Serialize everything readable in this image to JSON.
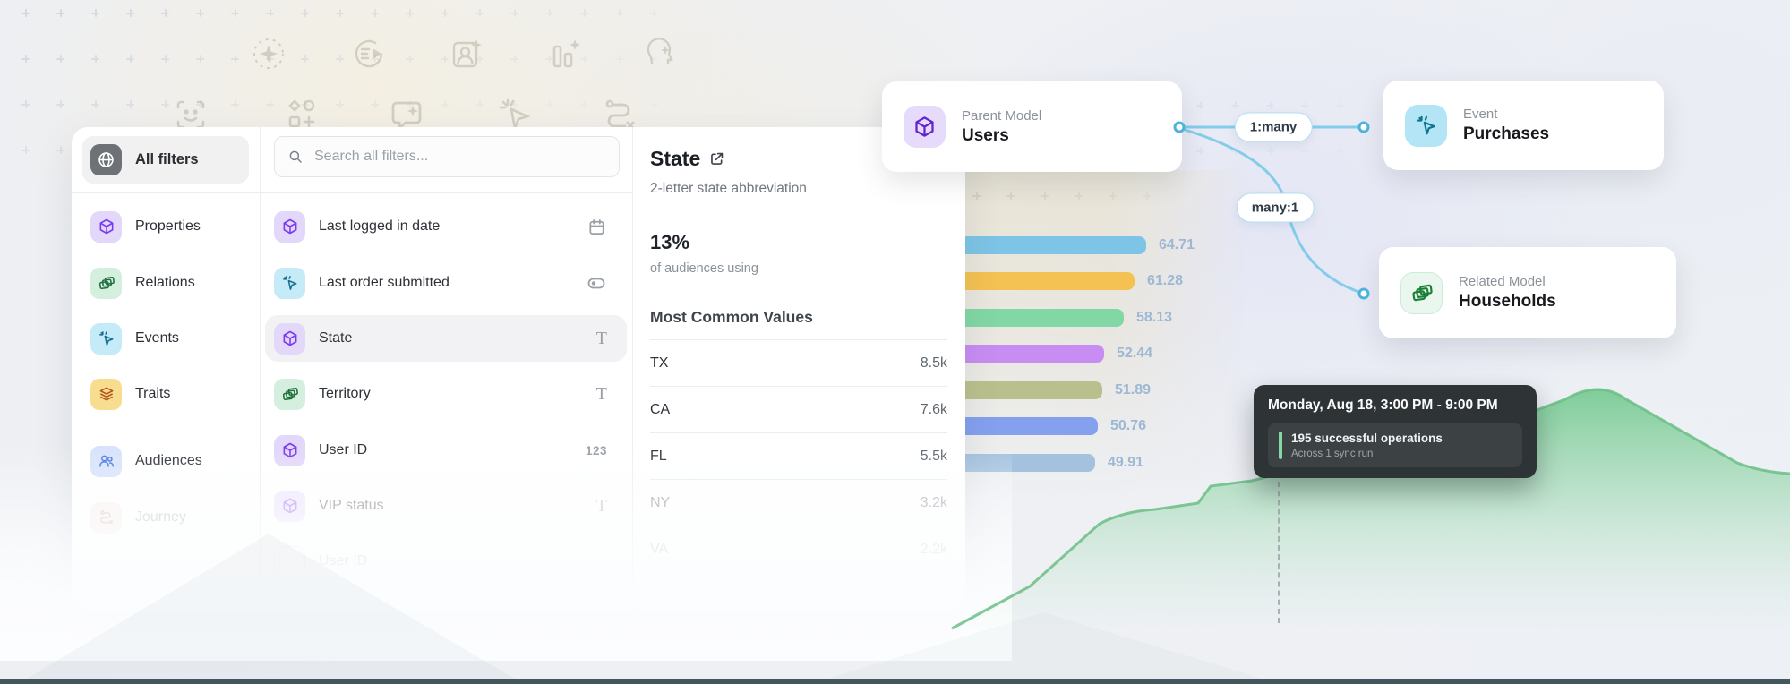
{
  "sidebar": {
    "all_filters": {
      "label": "All filters",
      "icon_bg": "#6e7277",
      "icon_color": "#ffffff"
    },
    "items": [
      {
        "label": "Properties",
        "icon": "cube",
        "icon_bg": "#e3d7fa",
        "icon_color": "#7a3bf0"
      },
      {
        "label": "Relations",
        "icon": "relations",
        "icon_bg": "#d4efde",
        "icon_color": "#22703f"
      },
      {
        "label": "Events",
        "icon": "event",
        "icon_bg": "#c5eaf8",
        "icon_color": "#19718f"
      },
      {
        "label": "Traits",
        "icon": "traits",
        "icon_bg": "#f9dd8f",
        "icon_color": "#b2591c"
      },
      {
        "label": "Audiences",
        "icon": "audiences",
        "icon_bg": "#d7e3fb",
        "icon_color": "#4a77e5"
      },
      {
        "label": "Journey",
        "icon": "journey",
        "icon_bg": "#f6ebe6",
        "icon_color": "#c0a79f"
      }
    ]
  },
  "filter_list": {
    "search_placeholder": "Search all filters...",
    "items": [
      {
        "label": "Last logged in date",
        "type": "date",
        "icon_bg": "#e3d7fa",
        "icon_color": "#7a3bf0"
      },
      {
        "label": "Last order submitted",
        "type": "boolean",
        "icon_bg": "#c5eaf8",
        "icon_color": "#19718f"
      },
      {
        "label": "State",
        "type": "text",
        "icon_bg": "#e3d7fa",
        "icon_color": "#7a3bf0"
      },
      {
        "label": "Territory",
        "type": "text",
        "icon_bg": "#d4efde",
        "icon_color": "#22703f"
      },
      {
        "label": "User ID",
        "type": "number",
        "type_badge": "123",
        "icon_bg": "#e3d7fa",
        "icon_color": "#7a3bf0"
      },
      {
        "label": "VIP status",
        "type": "text",
        "icon_bg": "#e3d7fa",
        "icon_color": "#7a3bf0"
      },
      {
        "label": "User ID",
        "type": "none"
      }
    ]
  },
  "detail": {
    "title": "State",
    "subtitle": "2-letter state abbreviation",
    "usage_value": "13%",
    "usage_caption": "of audiences using",
    "section_title": "Most Common Values",
    "values": [
      {
        "label": "TX",
        "count": "8.5k"
      },
      {
        "label": "CA",
        "count": "7.6k"
      },
      {
        "label": "FL",
        "count": "5.5k"
      },
      {
        "label": "NY",
        "count": "3.2k"
      },
      {
        "label": "VA",
        "count": "2.2k"
      }
    ]
  },
  "chart_data": {
    "type": "bar",
    "orientation": "horizontal",
    "values": [
      64.71,
      61.28,
      58.13,
      52.44,
      51.89,
      50.76,
      49.91
    ],
    "colors": [
      "#7ec4e6",
      "#f4c253",
      "#82d8a4",
      "#c88df2",
      "#bac08d",
      "#85a0ee",
      "#a4c2de"
    ],
    "label_color": "#9db8d5",
    "note": "category axis hidden behind filter panel"
  },
  "graph": {
    "nodes": [
      {
        "kind": "Parent Model",
        "name": "Users",
        "icon": "cube",
        "icon_bg": "#e6dbfa",
        "icon_color": "#6325c9"
      },
      {
        "kind": "Event",
        "name": "Purchases",
        "icon": "event",
        "icon_bg": "#b3e5f6",
        "icon_color": "#0e7490"
      },
      {
        "kind": "Related Model",
        "name": "Households",
        "icon": "relations",
        "icon_bg": "#e9f7ee",
        "icon_color": "#1a7f37"
      }
    ],
    "edges": [
      {
        "label": "1:many"
      },
      {
        "label": "many:1"
      }
    ]
  },
  "tooltip": {
    "title": "Monday, Aug 18, 3:00 PM - 9:00 PM",
    "metric": "195 successful operations",
    "caption": "Across 1 sync run",
    "accent_color": "#83d8a6"
  },
  "background": {
    "bottom_bar_color": "#44565e",
    "area_green": "#7bcb93"
  }
}
